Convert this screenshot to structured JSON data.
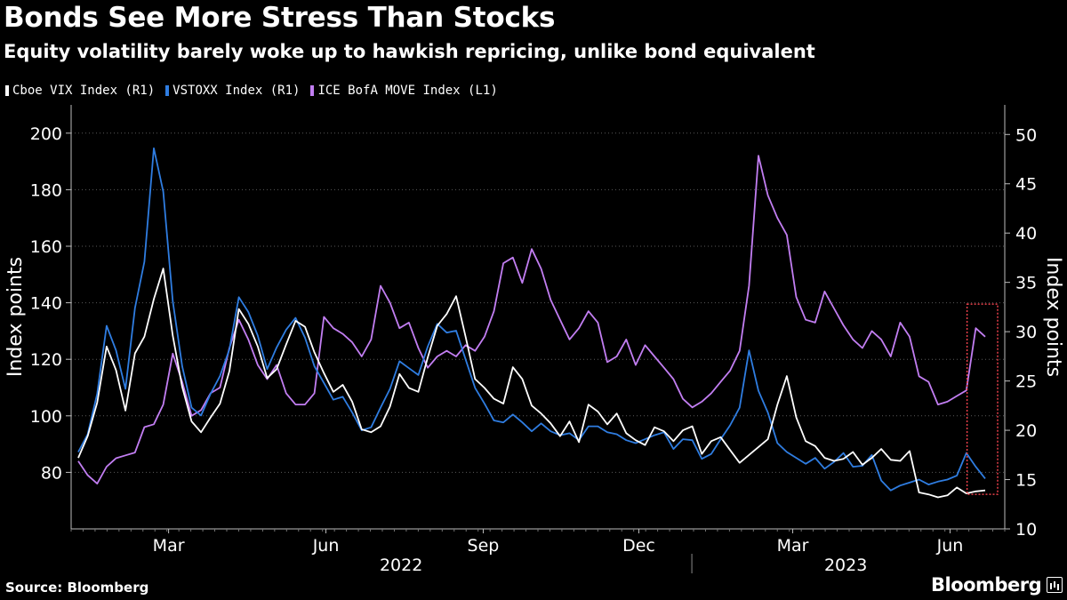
{
  "header": {
    "title": "Bonds See More Stress Than Stocks",
    "subtitle": "Equity volatility barely woke up to hawkish repricing, unlike bond equivalent"
  },
  "footer": {
    "source": "Source: Bloomberg",
    "brand": "Bloomberg"
  },
  "colors": {
    "background": "#000000",
    "text": "#ffffff",
    "vix": "#ffffff",
    "vstoxx": "#2f7de1",
    "move": "#c27ef2",
    "highlight_box": "#e8404a"
  },
  "chart_data": {
    "type": "line",
    "x_unit": "weekly, 2022-01-03 to 2023-07-03",
    "x_tick_labels": [
      "Mar",
      "Jun",
      "Sep",
      "Dec",
      "Mar",
      "Jun"
    ],
    "x_tick_dates": [
      "2022-03-01",
      "2022-06-01",
      "2022-09-01",
      "2022-12-01",
      "2023-03-01",
      "2023-06-01"
    ],
    "year_labels": [
      "2022",
      "2023"
    ],
    "year_label_dates": [
      "2022-07-15",
      "2023-04-01"
    ],
    "year_divider_date": "2023-01-01",
    "left_axis": {
      "label": "Index points",
      "ylim": [
        60,
        210
      ],
      "ticks": [
        80,
        100,
        120,
        140,
        160,
        180,
        200
      ]
    },
    "right_axis": {
      "label": "Index points",
      "ylim": [
        10,
        53
      ],
      "ticks": [
        10,
        15,
        20,
        25,
        30,
        35,
        40,
        45,
        50
      ]
    },
    "grid": "horizontal dotted at left-axis ticks",
    "series": [
      {
        "name": "Cboe VIX Index (R1)",
        "axis": "right",
        "color": "#ffffff",
        "values": [
          17.2,
          19.4,
          22.8,
          28.5,
          26.1,
          22.0,
          27.8,
          29.5,
          33.3,
          36.4,
          29.6,
          24.4,
          20.9,
          19.8,
          21.3,
          22.7,
          26.0,
          32.3,
          30.8,
          28.5,
          25.3,
          26.2,
          28.7,
          31.1,
          30.5,
          27.9,
          25.8,
          23.9,
          24.6,
          22.9,
          20.1,
          19.8,
          20.4,
          22.4,
          25.7,
          24.3,
          23.9,
          27.4,
          30.6,
          31.8,
          33.6,
          29.5,
          25.2,
          24.3,
          23.2,
          22.7,
          26.4,
          25.2,
          22.5,
          21.7,
          20.7,
          19.4,
          20.9,
          18.8,
          22.6,
          21.9,
          20.6,
          21.7,
          19.7,
          19.0,
          18.5,
          20.3,
          19.9,
          18.9,
          20.0,
          20.4,
          17.6,
          18.9,
          19.3,
          18.0,
          16.7,
          17.5,
          18.3,
          19.1,
          22.6,
          25.5,
          21.3,
          18.9,
          18.4,
          17.2,
          16.9,
          17.1,
          17.8,
          16.5,
          17.2,
          18.1,
          17.0,
          16.9,
          17.9,
          13.7,
          13.5,
          13.2,
          13.4,
          14.2,
          13.6,
          13.8,
          13.9
        ]
      },
      {
        "name": "VSTOXX Index (R1)",
        "axis": "right",
        "color": "#2f7de1",
        "values": [
          17.8,
          19.6,
          23.7,
          30.6,
          28.1,
          24.2,
          32.4,
          37.1,
          48.6,
          44.2,
          33.1,
          26.5,
          22.3,
          21.5,
          23.7,
          25.5,
          28.2,
          33.5,
          32.0,
          29.6,
          26.2,
          28.4,
          30.2,
          31.4,
          29.4,
          26.5,
          24.8,
          23.1,
          23.4,
          21.8,
          20.0,
          20.3,
          22.3,
          24.2,
          27.0,
          26.3,
          25.6,
          28.5,
          30.8,
          29.9,
          30.1,
          27.2,
          24.3,
          22.7,
          21.0,
          20.8,
          21.6,
          20.8,
          19.9,
          20.7,
          19.9,
          19.5,
          19.7,
          19.0,
          20.4,
          20.4,
          19.8,
          19.6,
          19.0,
          18.7,
          19.1,
          19.5,
          19.8,
          18.1,
          19.1,
          19.0,
          17.1,
          17.6,
          19.1,
          20.5,
          22.3,
          28.1,
          24.0,
          21.8,
          18.7,
          17.8,
          17.2,
          16.6,
          17.2,
          16.1,
          16.8,
          17.7,
          16.3,
          16.4,
          17.5,
          14.9,
          13.9,
          14.4,
          14.7,
          15.0,
          14.5,
          14.8,
          15.0,
          15.4,
          17.7,
          16.3,
          15.1
        ]
      },
      {
        "name": "ICE BofA MOVE Index (L1)",
        "axis": "left",
        "color": "#c27ef2",
        "values": [
          84,
          79,
          76,
          82,
          85,
          86,
          87,
          96,
          97,
          104,
          122,
          112,
          100,
          102,
          108,
          110,
          124,
          134,
          127,
          118,
          113,
          118,
          108,
          104,
          104,
          108,
          135,
          131,
          129,
          126,
          121,
          127,
          146,
          140,
          131,
          133,
          124,
          117,
          121,
          123,
          121,
          125,
          123,
          128,
          137,
          154,
          156,
          147,
          159,
          152,
          141,
          134,
          127,
          131,
          137,
          133,
          119,
          121,
          127,
          118,
          125,
          121,
          117,
          113,
          106,
          103,
          105,
          108,
          112,
          116,
          123,
          146,
          192,
          178,
          170,
          164,
          142,
          134,
          133,
          144,
          138,
          132,
          127,
          124,
          130,
          127,
          121,
          133,
          128,
          114,
          112,
          104,
          105,
          107,
          109,
          131,
          128
        ]
      }
    ],
    "highlight": {
      "from": "2023-06-12",
      "to": "2023-07-03",
      "y_range_right": [
        13.5,
        32.8
      ]
    }
  }
}
